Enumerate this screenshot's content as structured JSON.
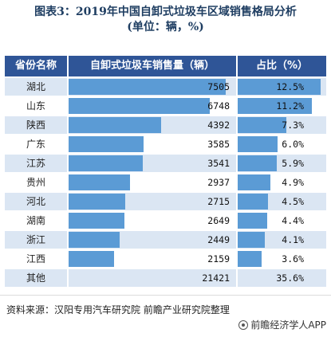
{
  "title_line1": "图表3：2019年中国自卸式垃圾车区域销售格局分析",
  "title_line2": "(单位：辆，%)",
  "source": "资料来源：汉阳专用汽车研究院 前瞻产业研究院整理",
  "brand": "前瞻经济学人APP",
  "colors": {
    "header_bg": "#2f5597",
    "bar": "#5b9bd5",
    "title": "#1f3e62"
  },
  "chart_data": {
    "type": "table",
    "columns": [
      "省份名称",
      "自卸式垃圾车销售量（辆）",
      "占比（%）"
    ],
    "rows": [
      {
        "name": "湖北",
        "volume": 7505,
        "share": "12.5%",
        "share_value": 12.5
      },
      {
        "name": "山东",
        "volume": 6748,
        "share": "11.2%",
        "share_value": 11.2
      },
      {
        "name": "陕西",
        "volume": 4392,
        "share": "7.3%",
        "share_value": 7.3
      },
      {
        "name": "广东",
        "volume": 3585,
        "share": "6.0%",
        "share_value": 6.0
      },
      {
        "name": "江苏",
        "volume": 3541,
        "share": "5.9%",
        "share_value": 5.9
      },
      {
        "name": "贵州",
        "volume": 2937,
        "share": "4.9%",
        "share_value": 4.9
      },
      {
        "name": "河北",
        "volume": 2715,
        "share": "4.5%",
        "share_value": 4.5
      },
      {
        "name": "湖南",
        "volume": 2649,
        "share": "4.4%",
        "share_value": 4.4
      },
      {
        "name": "浙江",
        "volume": 2449,
        "share": "4.1%",
        "share_value": 4.1
      },
      {
        "name": "江西",
        "volume": 2159,
        "share": "3.6%",
        "share_value": 3.6
      },
      {
        "name": "其他",
        "volume": 21421,
        "share": "35.6%",
        "share_value": 35.6
      }
    ],
    "bar_rows": 10
  }
}
